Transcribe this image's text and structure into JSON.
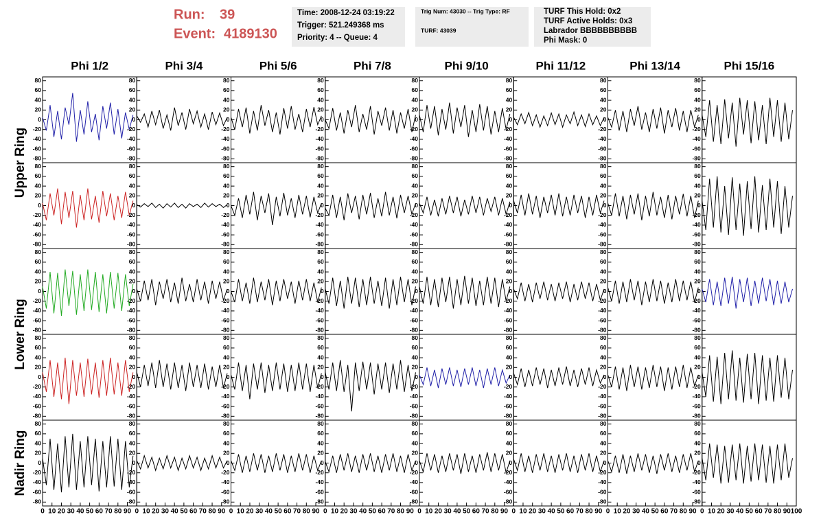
{
  "header": {
    "run_label": "Run:",
    "run": "39",
    "event_label": "Event:",
    "event": "4189130",
    "box1": [
      "Time: 2008-12-24 03:19:22",
      "Trigger: 521.249368 ms",
      "Priority: 4 -- Queue: 4"
    ],
    "box2": [
      "Trig Num: 43030 -- Trig Type: RF",
      "TURF: 43039"
    ],
    "box3": [
      "TURF This Hold: 0x2",
      "TURF Active Holds: 0x3",
      "Labrador BBBBBBBBBB",
      "Phi Mask: 0"
    ]
  },
  "chart_data": {
    "type": "line",
    "columns": [
      "Phi 1/2",
      "Phi 3/4",
      "Phi 5/6",
      "Phi 7/8",
      "Phi 9/10",
      "Phi 11/12",
      "Phi 13/14",
      "Phi 15/16"
    ],
    "rows": [
      "Upper Ring",
      "Lower Ring",
      "Nadir Ring"
    ],
    "ylim": [
      -88,
      88
    ],
    "yticks": [
      80,
      60,
      40,
      20,
      0,
      -20,
      -40,
      -60,
      -80
    ],
    "xlim": [
      0,
      100
    ],
    "xticks": [
      0,
      10,
      20,
      30,
      40,
      50,
      60,
      70,
      80,
      90,
      100
    ],
    "x": [
      0,
      4,
      8,
      12,
      16,
      20,
      24,
      28,
      32,
      36,
      40,
      44,
      48,
      52,
      56,
      60,
      64,
      68,
      72,
      76,
      80,
      84,
      88,
      92,
      96
    ],
    "panels": [
      {
        "color": "#1f1fa8",
        "values": [
          5,
          -22,
          30,
          -35,
          18,
          -40,
          25,
          -10,
          55,
          -45,
          20,
          -30,
          38,
          -25,
          12,
          -42,
          28,
          -18,
          35,
          -30,
          22,
          -38,
          15,
          -20,
          10
        ]
      },
      {
        "color": "#000000",
        "values": [
          8,
          -5,
          12,
          -15,
          18,
          -10,
          20,
          -18,
          10,
          -22,
          25,
          -12,
          15,
          -20,
          22,
          -8,
          18,
          -15,
          12,
          -20,
          16,
          -10,
          14,
          -12,
          5
        ]
      },
      {
        "color": "#000000",
        "values": [
          5,
          -20,
          22,
          -15,
          25,
          -28,
          18,
          -22,
          30,
          -12,
          20,
          -25,
          15,
          -30,
          24,
          -18,
          28,
          -20,
          12,
          -25,
          22,
          -15,
          26,
          -10,
          8
        ]
      },
      {
        "color": "#000000",
        "values": [
          0,
          -18,
          24,
          -22,
          15,
          -28,
          20,
          -15,
          30,
          -25,
          12,
          -20,
          28,
          -30,
          18,
          -12,
          25,
          -22,
          20,
          -28,
          15,
          -18,
          22,
          -25,
          10
        ]
      },
      {
        "color": "#000000",
        "values": [
          10,
          -25,
          30,
          -18,
          28,
          -32,
          22,
          -20,
          35,
          -28,
          25,
          -15,
          30,
          -35,
          20,
          -25,
          32,
          -22,
          28,
          -30,
          18,
          -25,
          24,
          -20,
          12
        ]
      },
      {
        "color": "#000000",
        "values": [
          5,
          -10,
          12,
          -8,
          15,
          -12,
          10,
          -15,
          8,
          -12,
          14,
          -10,
          12,
          -15,
          10,
          -8,
          16,
          -12,
          10,
          -14,
          12,
          -10,
          8,
          -12,
          5
        ]
      },
      {
        "color": "#000000",
        "values": [
          5,
          -15,
          20,
          -22,
          18,
          -25,
          22,
          -12,
          28,
          -20,
          15,
          -25,
          22,
          -18,
          25,
          -28,
          20,
          -15,
          24,
          -22,
          18,
          -25,
          20,
          -15,
          10
        ]
      },
      {
        "color": "#000000",
        "values": [
          10,
          -35,
          40,
          -45,
          30,
          -50,
          42,
          -38,
          35,
          -55,
          45,
          -30,
          40,
          -48,
          38,
          -42,
          30,
          -50,
          45,
          -35,
          40,
          -45,
          35,
          -40,
          20
        ]
      },
      {
        "color": "#cc2222",
        "values": [
          5,
          -30,
          25,
          -20,
          35,
          -38,
          28,
          -25,
          30,
          -45,
          22,
          -30,
          35,
          -28,
          20,
          -35,
          30,
          -22,
          25,
          -30,
          20,
          -25,
          28,
          -20,
          10
        ]
      },
      {
        "color": "#000000",
        "values": [
          2,
          -3,
          4,
          -2,
          5,
          -4,
          3,
          -5,
          4,
          -3,
          5,
          -4,
          3,
          -5,
          4,
          -2,
          3,
          -4,
          5,
          -3,
          4,
          -2,
          3,
          -4,
          2
        ]
      },
      {
        "color": "#000000",
        "values": [
          0,
          -20,
          15,
          -25,
          22,
          -18,
          28,
          -30,
          20,
          -15,
          25,
          -40,
          18,
          -22,
          26,
          -20,
          15,
          -25,
          22,
          -18,
          20,
          -24,
          18,
          -15,
          5
        ]
      },
      {
        "color": "#000000",
        "values": [
          -5,
          -20,
          22,
          -25,
          18,
          -30,
          25,
          -15,
          20,
          -28,
          22,
          -18,
          26,
          -25,
          15,
          -22,
          28,
          -20,
          18,
          -26,
          22,
          -15,
          20,
          -18,
          5
        ]
      },
      {
        "color": "#000000",
        "values": [
          5,
          -15,
          18,
          -20,
          12,
          -22,
          15,
          -18,
          20,
          -15,
          18,
          -22,
          12,
          -18,
          20,
          -15,
          18,
          -20,
          15,
          -12,
          18,
          -20,
          15,
          -18,
          8
        ]
      },
      {
        "color": "#000000",
        "values": [
          10,
          -15,
          22,
          -20,
          25,
          -18,
          20,
          -25,
          18,
          -15,
          22,
          -20,
          25,
          -22,
          18,
          -20,
          22,
          -15,
          20,
          -25,
          18,
          -20,
          22,
          -15,
          10
        ]
      },
      {
        "color": "#000000",
        "values": [
          5,
          -20,
          25,
          -22,
          20,
          -28,
          22,
          -18,
          25,
          -30,
          20,
          -22,
          28,
          -20,
          18,
          -25,
          22,
          -28,
          20,
          -18,
          24,
          -22,
          20,
          -25,
          10
        ]
      },
      {
        "color": "#000000",
        "values": [
          10,
          -50,
          55,
          -45,
          60,
          -55,
          40,
          -60,
          58,
          -50,
          45,
          -62,
          50,
          -48,
          60,
          -55,
          42,
          -50,
          55,
          -45,
          50,
          -58,
          40,
          -45,
          20
        ]
      },
      {
        "color": "#22aa22",
        "values": [
          10,
          -35,
          40,
          -45,
          38,
          -50,
          45,
          -30,
          42,
          -48,
          35,
          -40,
          45,
          -38,
          40,
          -42,
          35,
          -45,
          40,
          -35,
          38,
          -40,
          35,
          -30,
          15
        ]
      },
      {
        "color": "#000000",
        "values": [
          5,
          -20,
          22,
          -18,
          25,
          -28,
          20,
          -15,
          25,
          -22,
          18,
          -25,
          28,
          -20,
          15,
          -22,
          25,
          -18,
          20,
          -25,
          22,
          -15,
          20,
          -18,
          5
        ]
      },
      {
        "color": "#000000",
        "values": [
          0,
          -22,
          25,
          -20,
          18,
          -25,
          28,
          -22,
          20,
          -18,
          25,
          -28,
          22,
          -20,
          25,
          -15,
          20,
          -25,
          22,
          -18,
          25,
          -20,
          18,
          -22,
          8
        ]
      },
      {
        "color": "#000000",
        "values": [
          5,
          -25,
          28,
          -30,
          22,
          -35,
          30,
          -25,
          28,
          -32,
          25,
          -28,
          30,
          -25,
          22,
          -30,
          28,
          -35,
          25,
          -28,
          30,
          -22,
          25,
          -28,
          10
        ]
      },
      {
        "color": "#000000",
        "values": [
          10,
          -25,
          30,
          -28,
          25,
          -32,
          28,
          -22,
          30,
          -35,
          25,
          -28,
          32,
          -25,
          28,
          -30,
          22,
          -28,
          30,
          -25,
          28,
          -32,
          25,
          -20,
          10
        ]
      },
      {
        "color": "#000000",
        "values": [
          5,
          -15,
          18,
          -20,
          15,
          -22,
          18,
          -15,
          20,
          -18,
          15,
          -20,
          18,
          -15,
          20,
          -22,
          15,
          -18,
          20,
          -15,
          18,
          -20,
          15,
          -18,
          5
        ]
      },
      {
        "color": "#000000",
        "values": [
          8,
          -20,
          22,
          -25,
          20,
          -22,
          25,
          -18,
          22,
          -28,
          20,
          -22,
          25,
          -20,
          22,
          -25,
          18,
          -22,
          25,
          -20,
          22,
          -18,
          20,
          -22,
          8
        ]
      },
      {
        "color": "#1f1fa8",
        "values": [
          5,
          -22,
          25,
          -28,
          20,
          -30,
          28,
          -25,
          30,
          -35,
          25,
          -22,
          28,
          -30,
          22,
          -25,
          28,
          -20,
          25,
          -28,
          22,
          -25,
          20,
          -22,
          5
        ]
      },
      {
        "color": "#cc2222",
        "values": [
          10,
          -30,
          35,
          -40,
          30,
          -45,
          40,
          -55,
          35,
          -38,
          30,
          -40,
          38,
          -35,
          30,
          -42,
          35,
          -38,
          40,
          -35,
          30,
          -38,
          35,
          -30,
          10
        ]
      },
      {
        "color": "#000000",
        "values": [
          10,
          -20,
          25,
          -18,
          30,
          -22,
          35,
          -20,
          28,
          -25,
          30,
          -22,
          25,
          -28,
          30,
          -20,
          25,
          -22,
          28,
          -25,
          22,
          -20,
          25,
          -22,
          8
        ]
      },
      {
        "color": "#000000",
        "values": [
          5,
          -25,
          30,
          -28,
          25,
          -45,
          28,
          -25,
          30,
          -32,
          25,
          -28,
          30,
          -25,
          28,
          -30,
          25,
          -28,
          30,
          -25,
          28,
          -30,
          25,
          -22,
          8
        ]
      },
      {
        "color": "#000000",
        "values": [
          10,
          -25,
          30,
          -28,
          35,
          -30,
          25,
          -70,
          30,
          -28,
          32,
          -25,
          30,
          -35,
          28,
          -25,
          30,
          -32,
          28,
          -25,
          35,
          -30,
          25,
          -28,
          10
        ]
      },
      {
        "color": "#1f1fa8",
        "values": [
          5,
          -15,
          20,
          -18,
          15,
          -22,
          18,
          -15,
          20,
          -18,
          15,
          -20,
          18,
          -15,
          20,
          -18,
          15,
          -22,
          18,
          -15,
          20,
          -18,
          15,
          -12,
          5
        ]
      },
      {
        "color": "#000000",
        "values": [
          8,
          -15,
          18,
          -20,
          15,
          -18,
          20,
          -15,
          18,
          -22,
          15,
          -18,
          20,
          -15,
          22,
          -18,
          15,
          -20,
          18,
          -15,
          20,
          -18,
          15,
          -12,
          5
        ]
      },
      {
        "color": "#000000",
        "values": [
          5,
          -20,
          22,
          -25,
          20,
          -28,
          25,
          -20,
          22,
          -25,
          20,
          -22,
          25,
          -20,
          22,
          -28,
          20,
          -25,
          22,
          -20,
          25,
          -22,
          20,
          -18,
          5
        ]
      },
      {
        "color": "#000000",
        "values": [
          10,
          -40,
          45,
          -50,
          42,
          -55,
          50,
          -45,
          55,
          -48,
          40,
          -52,
          48,
          -45,
          50,
          -55,
          45,
          -48,
          40,
          -50,
          45,
          -42,
          40,
          -45,
          15
        ]
      },
      {
        "color": "#000000",
        "values": [
          10,
          -45,
          50,
          -55,
          40,
          -60,
          55,
          -50,
          60,
          -55,
          45,
          -50,
          55,
          -45,
          50,
          -58,
          45,
          -50,
          55,
          -48,
          50,
          -55,
          45,
          -50,
          15
        ]
      },
      {
        "color": "#000000",
        "values": [
          5,
          -12,
          15,
          -10,
          12,
          -15,
          10,
          -12,
          15,
          -10,
          12,
          -15,
          10,
          -12,
          15,
          -10,
          12,
          -15,
          10,
          -12,
          15,
          -10,
          12,
          -10,
          5
        ]
      },
      {
        "color": "#000000",
        "values": [
          5,
          -15,
          18,
          -20,
          15,
          -18,
          20,
          -15,
          18,
          -20,
          15,
          -18,
          20,
          -15,
          18,
          -20,
          15,
          -18,
          20,
          -15,
          18,
          -20,
          15,
          -15,
          5
        ]
      },
      {
        "color": "#000000",
        "values": [
          3,
          -18,
          15,
          -20,
          18,
          -15,
          20,
          -18,
          15,
          -20,
          18,
          -15,
          20,
          -18,
          15,
          -20,
          18,
          -15,
          20,
          -18,
          15,
          -20,
          18,
          -15,
          5
        ]
      },
      {
        "color": "#000000",
        "values": [
          5,
          -18,
          20,
          -15,
          18,
          -20,
          15,
          -18,
          20,
          -15,
          18,
          -22,
          20,
          -18,
          15,
          -20,
          18,
          -15,
          22,
          -18,
          20,
          -15,
          18,
          -20,
          5
        ]
      },
      {
        "color": "#000000",
        "values": [
          8,
          -15,
          20,
          -18,
          15,
          -20,
          18,
          -15,
          20,
          -18,
          15,
          -20,
          18,
          -15,
          20,
          -18,
          15,
          -20,
          18,
          -15,
          20,
          -18,
          15,
          -18,
          5
        ]
      },
      {
        "color": "#000000",
        "values": [
          5,
          -18,
          15,
          -20,
          18,
          -22,
          15,
          -18,
          20,
          -15,
          18,
          -20,
          15,
          -22,
          18,
          -15,
          20,
          -18,
          15,
          -20,
          18,
          -15,
          20,
          -18,
          5
        ]
      },
      {
        "color": "#000000",
        "values": [
          10,
          -35,
          40,
          -30,
          38,
          -42,
          35,
          -40,
          38,
          -35,
          40,
          -42,
          35,
          -38,
          40,
          -35,
          38,
          -40,
          35,
          -42,
          38,
          -35,
          40,
          -30,
          10
        ]
      }
    ]
  }
}
